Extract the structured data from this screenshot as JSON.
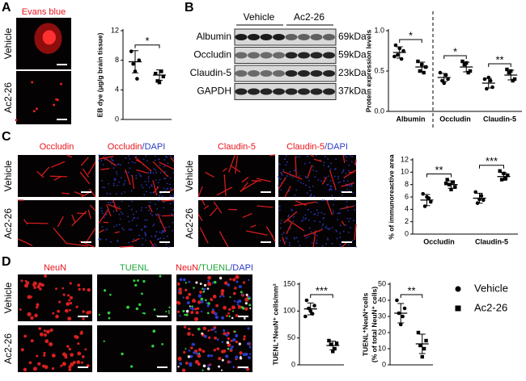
{
  "panel_labels": [
    "A",
    "B",
    "C",
    "D"
  ],
  "panel_a": {
    "image_title": "Evans blue",
    "rows": [
      "Vehicle",
      "Ac2-26"
    ]
  },
  "panel_b": {
    "columns": [
      "Vehicle",
      "Ac2-26"
    ],
    "bands": [
      {
        "protein": "Albumin",
        "size": "69kDa"
      },
      {
        "protein": "Occludin",
        "size": "59kDa"
      },
      {
        "protein": "Claudin-5",
        "size": "23kDa"
      },
      {
        "protein": "GAPDH",
        "size": "37kDa"
      }
    ]
  },
  "panel_c": {
    "titles": [
      [
        {
          "text": "Occludin",
          "color": "#e8141c"
        }
      ],
      [
        {
          "text": "Occludin",
          "color": "#e8141c"
        },
        {
          "text": "/DAPI",
          "color": "#2a3cc8"
        }
      ],
      [
        {
          "text": "Claudin-5",
          "color": "#e8141c"
        }
      ],
      [
        {
          "text": "Claudin-5",
          "color": "#e8141c"
        },
        {
          "text": "/DAPI",
          "color": "#2a3cc8"
        }
      ]
    ],
    "rows": [
      "Vehicle",
      "Ac2-26"
    ]
  },
  "panel_d": {
    "titles": [
      [
        {
          "text": "NeuN",
          "color": "#e8141c"
        }
      ],
      [
        {
          "text": "TUENL",
          "color": "#1fa83a"
        }
      ],
      [
        {
          "text": "NeuN",
          "color": "#e8141c"
        },
        {
          "text": "/TUENL",
          "color": "#1fa83a"
        },
        {
          "text": "/DAPI",
          "color": "#2a3cc8"
        }
      ]
    ],
    "rows": [
      "Vehicle",
      "Ac2-26"
    ]
  },
  "legend": [
    {
      "text": "Vehicle",
      "marker": "circle"
    },
    {
      "text": "Ac2-26",
      "marker": "square"
    }
  ],
  "chart_data": [
    {
      "type": "dot",
      "ylabel": "EB dye (μg/g brain tissue)",
      "ylim": [
        0,
        12
      ],
      "yticks": [
        0,
        4,
        8,
        12
      ],
      "categories": [
        null
      ],
      "significance": [
        "*"
      ],
      "series": [
        {
          "marker": "circle",
          "points": [
            [
              9.2,
              8.0,
              7.5,
              5.5,
              6.5
            ]
          ],
          "mean": [
            7.8
          ],
          "sd": [
            1.5
          ]
        },
        {
          "marker": "square",
          "points": [
            [
              6.2,
              5.8,
              5.2,
              6.5,
              5.0
            ]
          ],
          "mean": [
            6.0
          ],
          "sd": [
            0.7
          ]
        }
      ]
    },
    {
      "type": "dot",
      "ylabel": "Protein expression levels",
      "ylim": [
        0,
        1
      ],
      "yticks": [
        {
          "value": 0,
          "label": "0.0"
        },
        0.5,
        {
          "value": 1,
          "label": "1.0"
        }
      ],
      "categories": [
        "Albumin",
        "Occludin",
        "Claudin-5"
      ],
      "significance": [
        "*",
        "*",
        "**"
      ],
      "series": [
        {
          "marker": "circle",
          "points": [
            [
              0.82,
              0.75,
              0.7,
              0.65,
              0.78,
              0.68
            ],
            [
              0.48,
              0.4,
              0.38,
              0.45,
              0.35
            ],
            [
              0.4,
              0.3,
              0.28,
              0.38,
              0.42
            ]
          ],
          "mean": [
            0.73,
            0.42,
            0.35
          ],
          "sd": [
            0.07,
            0.05,
            0.06
          ]
        },
        {
          "marker": "square",
          "points": [
            [
              0.62,
              0.55,
              0.5,
              0.48,
              0.58
            ],
            [
              0.62,
              0.5,
              0.58,
              0.48,
              0.6
            ],
            [
              0.52,
              0.4,
              0.48,
              0.38,
              0.5
            ]
          ],
          "mean": [
            0.55,
            0.55,
            0.45
          ],
          "sd": [
            0.06,
            0.06,
            0.06
          ]
        }
      ]
    },
    {
      "type": "dot",
      "ylabel": "% of immunoreactive area",
      "ylim": [
        0,
        12
      ],
      "yticks": [
        0,
        2,
        4,
        6,
        8,
        10,
        12
      ],
      "categories": [
        "Occludin",
        "Claudin-5"
      ],
      "significance": [
        "**",
        "***"
      ],
      "series": [
        {
          "marker": "circle",
          "points": [
            [
              6.5,
              5.2,
              4.5,
              5.8,
              6.0
            ],
            [
              6.8,
              5.5,
              5.0,
              6.2,
              5.6
            ]
          ],
          "mean": [
            5.5,
            5.8
          ],
          "sd": [
            0.9,
            0.8
          ]
        },
        {
          "marker": "square",
          "points": [
            [
              8.8,
              7.6,
              8.0,
              8.4,
              7.2,
              8.2
            ],
            [
              10.2,
              9.5,
              8.8,
              9.0,
              9.8
            ]
          ],
          "mean": [
            8.0,
            9.3
          ],
          "sd": [
            0.6,
            0.6
          ]
        }
      ]
    },
    {
      "type": "dot",
      "ylabel": "TUENL⁺NeuN⁺ cells/mm²",
      "ylim": [
        0,
        150
      ],
      "yticks": [
        0,
        50,
        100,
        150
      ],
      "categories": [
        null
      ],
      "significance": [
        "***"
      ],
      "series": [
        {
          "marker": "circle",
          "points": [
            [
              120,
              110,
              105,
              95,
              100,
              90
            ]
          ],
          "mean": [
            104
          ],
          "sd": [
            11
          ]
        },
        {
          "marker": "square",
          "points": [
            [
              45,
              40,
              38,
              30,
              25
            ]
          ],
          "mean": [
            36
          ],
          "sd": [
            8
          ]
        }
      ]
    },
    {
      "type": "dot",
      "ylabel": [
        "TUENL⁺NeuN⁺cells",
        "(% of total NeuN⁺ cells)"
      ],
      "ylim": [
        0,
        50
      ],
      "yticks": [
        0,
        10,
        20,
        30,
        40,
        50
      ],
      "categories": [
        null
      ],
      "significance": [
        "**"
      ],
      "series": [
        {
          "marker": "circle",
          "points": [
            [
              40,
              35,
              32,
              30,
              25
            ]
          ],
          "mean": [
            32
          ],
          "sd": [
            6
          ]
        },
        {
          "marker": "square",
          "points": [
            [
              20,
              15,
              12,
              10,
              5
            ]
          ],
          "mean": [
            13
          ],
          "sd": [
            6
          ]
        }
      ]
    }
  ]
}
